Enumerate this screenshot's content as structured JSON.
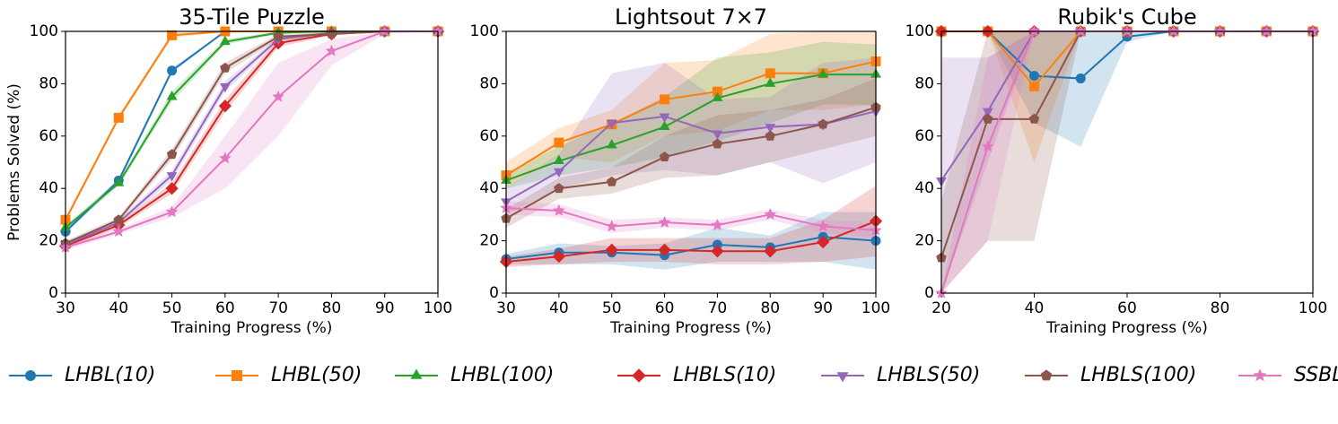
{
  "chart_data": [
    {
      "type": "line",
      "title": "35-Tile Puzzle",
      "xlabel": "Training Progress (%)",
      "ylabel": "Problems Solved (%)",
      "x": [
        30,
        40,
        50,
        60,
        70,
        80,
        90,
        100
      ],
      "xlim": [
        30,
        100
      ],
      "xticks": [
        30,
        40,
        50,
        60,
        70,
        80,
        90,
        100
      ],
      "ylim": [
        0,
        100
      ],
      "yticks": [
        0,
        20,
        40,
        60,
        80,
        100
      ],
      "series": [
        {
          "name": "LHBL(10)",
          "color": "#1f77b4",
          "marker": "circle",
          "values": [
            23.5,
            43,
            85,
            100,
            100,
            100,
            100,
            100
          ],
          "lower": [
            22.5,
            42,
            84,
            100,
            100,
            100,
            100,
            100
          ],
          "upper": [
            24.5,
            44,
            86,
            100,
            100,
            100,
            100,
            100
          ]
        },
        {
          "name": "LHBL(50)",
          "color": "#ff7f0e",
          "marker": "square",
          "values": [
            28,
            67,
            98.5,
            100,
            100,
            100,
            100,
            100
          ],
          "lower": [
            27,
            66,
            97.5,
            100,
            100,
            100,
            100,
            100
          ],
          "upper": [
            29,
            68,
            99.5,
            100,
            100,
            100,
            100,
            100
          ]
        },
        {
          "name": "LHBL(100)",
          "color": "#2ca02c",
          "marker": "triangle-up",
          "values": [
            25,
            42,
            75,
            96,
            99.5,
            100,
            100,
            100
          ],
          "lower": [
            24,
            41,
            73,
            95,
            99,
            100,
            100,
            100
          ],
          "upper": [
            26,
            43,
            77,
            97,
            100,
            100,
            100,
            100
          ]
        },
        {
          "name": "LHBLS(10)",
          "color": "#d62728",
          "marker": "diamond",
          "values": [
            18,
            26,
            40,
            71.5,
            95.5,
            99,
            100,
            100
          ],
          "lower": [
            17,
            25,
            38,
            69,
            94,
            98.5,
            100,
            100
          ],
          "upper": [
            19,
            27,
            42,
            74,
            97,
            99.5,
            100,
            100
          ]
        },
        {
          "name": "LHBLS(50)",
          "color": "#9467bd",
          "marker": "triangle-down",
          "values": [
            18.5,
            27,
            45,
            79,
            97,
            99.5,
            100,
            100
          ],
          "lower": [
            17.5,
            26,
            43,
            77,
            96,
            99,
            100,
            100
          ],
          "upper": [
            19.5,
            28,
            47,
            81,
            98,
            100,
            100,
            100
          ]
        },
        {
          "name": "LHBLS(100)",
          "color": "#8c564b",
          "marker": "pentagon",
          "values": [
            19,
            28,
            53,
            86,
            98,
            99,
            100,
            100
          ],
          "lower": [
            18,
            27,
            51,
            84,
            97,
            98.5,
            100,
            100
          ],
          "upper": [
            20,
            29,
            55,
            88,
            99,
            99.5,
            100,
            100
          ]
        },
        {
          "name": "SSBL",
          "color": "#e377c2",
          "marker": "star",
          "values": [
            17.5,
            23.5,
            31,
            51.5,
            75,
            92.5,
            100,
            100
          ],
          "lower": [
            16.5,
            22.5,
            29,
            40,
            60,
            87,
            99,
            100
          ],
          "upper": [
            18.5,
            24.5,
            33,
            60,
            88,
            97,
            100,
            100
          ]
        }
      ]
    },
    {
      "type": "line",
      "title": "Lightsout 7×7",
      "xlabel": "Training Progress (%)",
      "x": [
        30,
        40,
        50,
        60,
        70,
        80,
        90,
        100
      ],
      "xlim": [
        30,
        100
      ],
      "xticks": [
        30,
        40,
        50,
        60,
        70,
        80,
        90,
        100
      ],
      "ylim": [
        0,
        100
      ],
      "yticks": [
        0,
        20,
        40,
        60,
        80,
        100
      ],
      "series": [
        {
          "name": "LHBL(10)",
          "color": "#1f77b4",
          "marker": "circle",
          "values": [
            13,
            15.5,
            15.5,
            14.5,
            18.5,
            17.5,
            21.5,
            20
          ],
          "lower": [
            11,
            11,
            11,
            9,
            12,
            12,
            12,
            9
          ],
          "upper": [
            15,
            19,
            18,
            19,
            25,
            22,
            31,
            31
          ]
        },
        {
          "name": "LHBL(50)",
          "color": "#ff7f0e",
          "marker": "square",
          "values": [
            45,
            57.5,
            64.5,
            74,
            77,
            84,
            84,
            88.5
          ],
          "lower": [
            40,
            52,
            50,
            60,
            62,
            70,
            70,
            72
          ],
          "upper": [
            50,
            63,
            70,
            88,
            89,
            99,
            100,
            100
          ]
        },
        {
          "name": "LHBL(100)",
          "color": "#2ca02c",
          "marker": "triangle-up",
          "values": [
            43,
            50.5,
            56.5,
            63.5,
            74.5,
            80,
            83.5,
            83.5
          ],
          "lower": [
            40,
            45,
            48,
            52,
            58,
            65,
            72,
            72
          ],
          "upper": [
            46,
            56,
            65,
            75,
            90,
            92,
            96,
            95
          ]
        },
        {
          "name": "LHBLS(10)",
          "color": "#d62728",
          "marker": "diamond",
          "values": [
            12,
            14,
            16.5,
            16.5,
            16,
            16,
            19.5,
            27.5
          ],
          "lower": [
            10,
            11,
            12,
            12,
            11,
            11,
            12,
            14
          ],
          "upper": [
            14,
            17,
            21,
            21,
            21,
            21,
            28,
            41
          ]
        },
        {
          "name": "LHBLS(50)",
          "color": "#9467bd",
          "marker": "triangle-down",
          "values": [
            35,
            46.5,
            65,
            67.5,
            61,
            63.5,
            64.5,
            69.5
          ],
          "lower": [
            30,
            40,
            45,
            47,
            45,
            50,
            42,
            50
          ],
          "upper": [
            40,
            53,
            84,
            88,
            74,
            75,
            88,
            90
          ]
        },
        {
          "name": "LHBLS(100)",
          "color": "#8c564b",
          "marker": "pentagon",
          "values": [
            28.5,
            40,
            42.5,
            52,
            57,
            60,
            64.5,
            71
          ],
          "lower": [
            25,
            36,
            38,
            44,
            45,
            50,
            55,
            60
          ],
          "upper": [
            32,
            44,
            48,
            60,
            68,
            70,
            74,
            82
          ]
        },
        {
          "name": "SSBL",
          "color": "#e377c2",
          "marker": "star",
          "values": [
            32.5,
            31.5,
            25.5,
            27,
            26,
            30,
            25.5,
            24
          ],
          "lower": [
            30,
            29,
            23,
            25,
            24,
            28,
            23,
            21
          ],
          "upper": [
            35,
            34,
            28,
            29,
            28,
            32,
            28,
            27
          ]
        }
      ]
    },
    {
      "type": "line",
      "title": "Rubik's Cube",
      "xlabel": "Training Progress (%)",
      "x": [
        20,
        30,
        40,
        50,
        60,
        70,
        80,
        90,
        100
      ],
      "xlim": [
        20,
        100
      ],
      "xticks": [
        20,
        40,
        60,
        80,
        100
      ],
      "ylim": [
        0,
        100
      ],
      "yticks": [
        0,
        20,
        40,
        60,
        80,
        100
      ],
      "series": [
        {
          "name": "LHBL(10)",
          "color": "#1f77b4",
          "marker": "circle",
          "values": [
            100,
            100,
            83,
            82,
            98,
            100,
            100,
            100,
            100
          ],
          "lower": [
            100,
            100,
            65,
            56,
            96,
            100,
            100,
            100,
            100
          ],
          "upper": [
            100,
            100,
            100,
            100,
            100,
            100,
            100,
            100,
            100
          ]
        },
        {
          "name": "LHBL(50)",
          "color": "#ff7f0e",
          "marker": "square",
          "values": [
            100,
            100,
            79,
            100,
            100,
            100,
            100,
            100,
            100
          ],
          "lower": [
            100,
            100,
            50,
            100,
            100,
            100,
            100,
            100,
            100
          ],
          "upper": [
            100,
            100,
            100,
            100,
            100,
            100,
            100,
            100,
            100
          ]
        },
        {
          "name": "LHBL(100)",
          "color": "#2ca02c",
          "marker": "triangle-up",
          "values": [
            100,
            100,
            100,
            100,
            100,
            100,
            100,
            100,
            100
          ],
          "lower": [
            100,
            100,
            100,
            100,
            100,
            100,
            100,
            100,
            100
          ],
          "upper": [
            100,
            100,
            100,
            100,
            100,
            100,
            100,
            100,
            100
          ]
        },
        {
          "name": "LHBLS(10)",
          "color": "#d62728",
          "marker": "diamond",
          "values": [
            100,
            100,
            100,
            100,
            100,
            100,
            100,
            100,
            100
          ],
          "lower": [
            100,
            100,
            100,
            100,
            100,
            100,
            100,
            100,
            100
          ],
          "upper": [
            100,
            100,
            100,
            100,
            100,
            100,
            100,
            100,
            100
          ]
        },
        {
          "name": "LHBLS(50)",
          "color": "#9467bd",
          "marker": "triangle-down",
          "values": [
            43,
            69.5,
            100,
            100,
            100,
            100,
            100,
            100,
            100
          ],
          "lower": [
            0,
            50,
            100,
            100,
            100,
            100,
            100,
            100,
            100
          ],
          "upper": [
            90,
            90,
            100,
            100,
            100,
            100,
            100,
            100,
            100
          ]
        },
        {
          "name": "LHBLS(100)",
          "color": "#8c564b",
          "marker": "pentagon",
          "values": [
            13.5,
            66.5,
            66.5,
            100,
            100,
            100,
            100,
            100,
            100
          ],
          "lower": [
            0,
            20,
            20,
            100,
            100,
            100,
            100,
            100,
            100
          ],
          "upper": [
            35,
            100,
            100,
            100,
            100,
            100,
            100,
            100,
            100
          ]
        },
        {
          "name": "SSBL",
          "color": "#e377c2",
          "marker": "star",
          "values": [
            0,
            56,
            100,
            100,
            100,
            100,
            100,
            100,
            100
          ],
          "lower": [
            0,
            20,
            100,
            100,
            100,
            100,
            100,
            100,
            100
          ],
          "upper": [
            0,
            90,
            100,
            100,
            100,
            100,
            100,
            100,
            100
          ]
        }
      ]
    }
  ]
}
